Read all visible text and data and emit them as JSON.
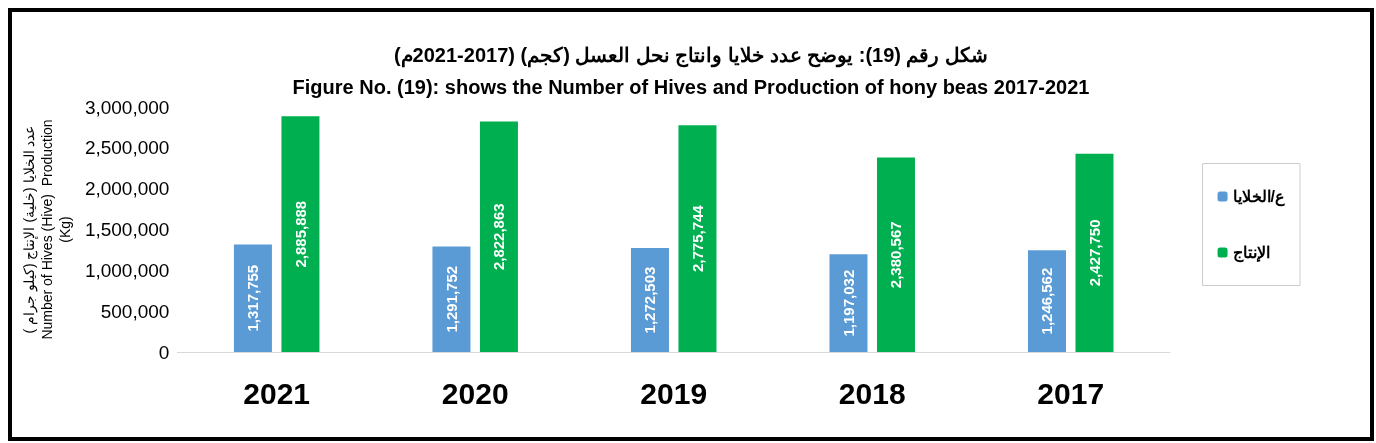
{
  "chart_data": {
    "type": "bar",
    "title": "شكل رقم (19): يوضح عدد خلايا وانتاج نحل العسل (كجم) (2017-2021م)",
    "subtitle": "Figure No. (19): shows the Number of Hives and Production of hony beas 2017-2021",
    "ylabel": "عدد الخلايا (خلية) الإنتاج (كيلو جرام )\nNumber of Hives (Hive)  Production\n(Kg)",
    "categories": [
      "2021",
      "2020",
      "2019",
      "2018",
      "2017"
    ],
    "series": [
      {
        "name": "ع/الخلايا",
        "color": "#5b9bd5",
        "values": [
          1317755,
          1291752,
          1272503,
          1197032,
          1246562
        ],
        "value_labels": [
          "1,317,755",
          "1,291,752",
          "1,272,503",
          "1,197,032",
          "1,246,562"
        ]
      },
      {
        "name": "الإنتاج",
        "color": "#00b050",
        "values": [
          2885888,
          2822863,
          2775744,
          2380567,
          2427750
        ],
        "value_labels": [
          "2,885,888",
          "2,822,863",
          "2,775,744",
          "2,380,567",
          "2,427,750"
        ]
      }
    ],
    "ylim": [
      0,
      3000000
    ],
    "yticks": [
      0,
      {
        "value": 500000,
        "label": "500,000"
      },
      {
        "value": 1000000,
        "label": "1,000,000"
      },
      {
        "value": 1500000,
        "label": "1,500,000"
      },
      {
        "value": 2000000,
        "label": "2,000,000"
      },
      {
        "value": 2500000,
        "label": "2,500,000"
      },
      {
        "value": 3000000,
        "label": "3,000,000"
      }
    ],
    "grid": false,
    "legend": "right"
  }
}
